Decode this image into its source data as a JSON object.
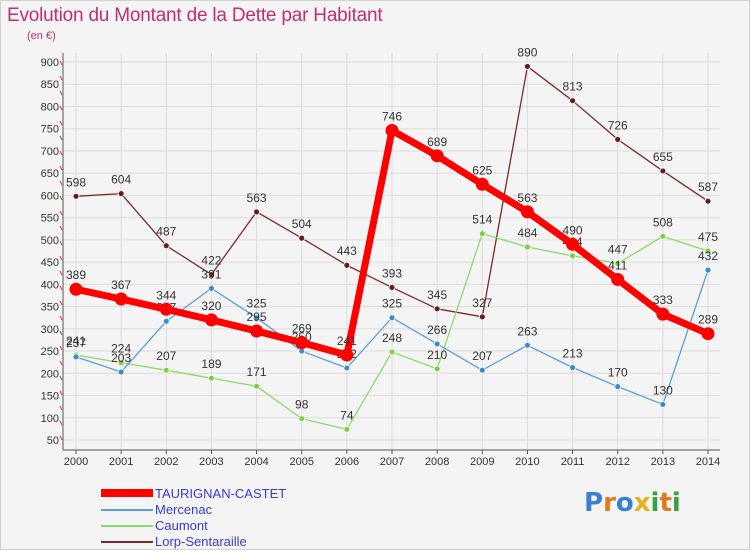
{
  "title": "Evolution du Montant de la Dette par Habitant",
  "unit_label": "(en €)",
  "logo": {
    "letters": [
      "P",
      "r",
      "o",
      "x",
      "i",
      "t",
      "i"
    ],
    "colors": [
      "#3a7fd0",
      "#e07a20",
      "#3a7fd0",
      "#e8b020",
      "#3aa040",
      "#e07a20",
      "#3aa040"
    ]
  },
  "chart_data": {
    "type": "line",
    "x": [
      2000,
      2001,
      2002,
      2003,
      2004,
      2005,
      2006,
      2007,
      2008,
      2009,
      2010,
      2011,
      2012,
      2013,
      2014
    ],
    "ylim": [
      50,
      900
    ],
    "yticks": [
      50,
      100,
      150,
      200,
      250,
      300,
      350,
      400,
      450,
      500,
      550,
      600,
      650,
      700,
      750,
      800,
      850,
      900
    ],
    "grid": true,
    "legend_position": "bottom-left",
    "series": [
      {
        "name": "Lorp-Sentaraille",
        "color": "#7a2a2a",
        "marker": "#6a1a1a",
        "values": [
          598,
          604,
          487,
          422,
          563,
          504,
          443,
          393,
          345,
          327,
          890,
          813,
          726,
          655,
          587
        ]
      },
      {
        "name": "Caumont",
        "color": "#8ed870",
        "marker": "#7ad040",
        "values": [
          241,
          224,
          207,
          189,
          171,
          98,
          74,
          248,
          210,
          514,
          484,
          464,
          447,
          508,
          475
        ]
      },
      {
        "name": "Mercenac",
        "color": "#5a9fd8",
        "marker": "#3a8ad0",
        "values": [
          237,
          203,
          317,
          391,
          325,
          250,
          212,
          325,
          266,
          207,
          263,
          213,
          170,
          130,
          432
        ]
      },
      {
        "name": "TAURIGNAN-CASTET",
        "color": "#ff0000",
        "marker": "#ff0000",
        "values": [
          389,
          367,
          344,
          320,
          295,
          269,
          241,
          746,
          689,
          625,
          563,
          490,
          411,
          333,
          289
        ]
      }
    ],
    "legend_order": [
      "TAURIGNAN-CASTET",
      "Mercenac",
      "Caumont",
      "Lorp-Sentaraille"
    ]
  }
}
